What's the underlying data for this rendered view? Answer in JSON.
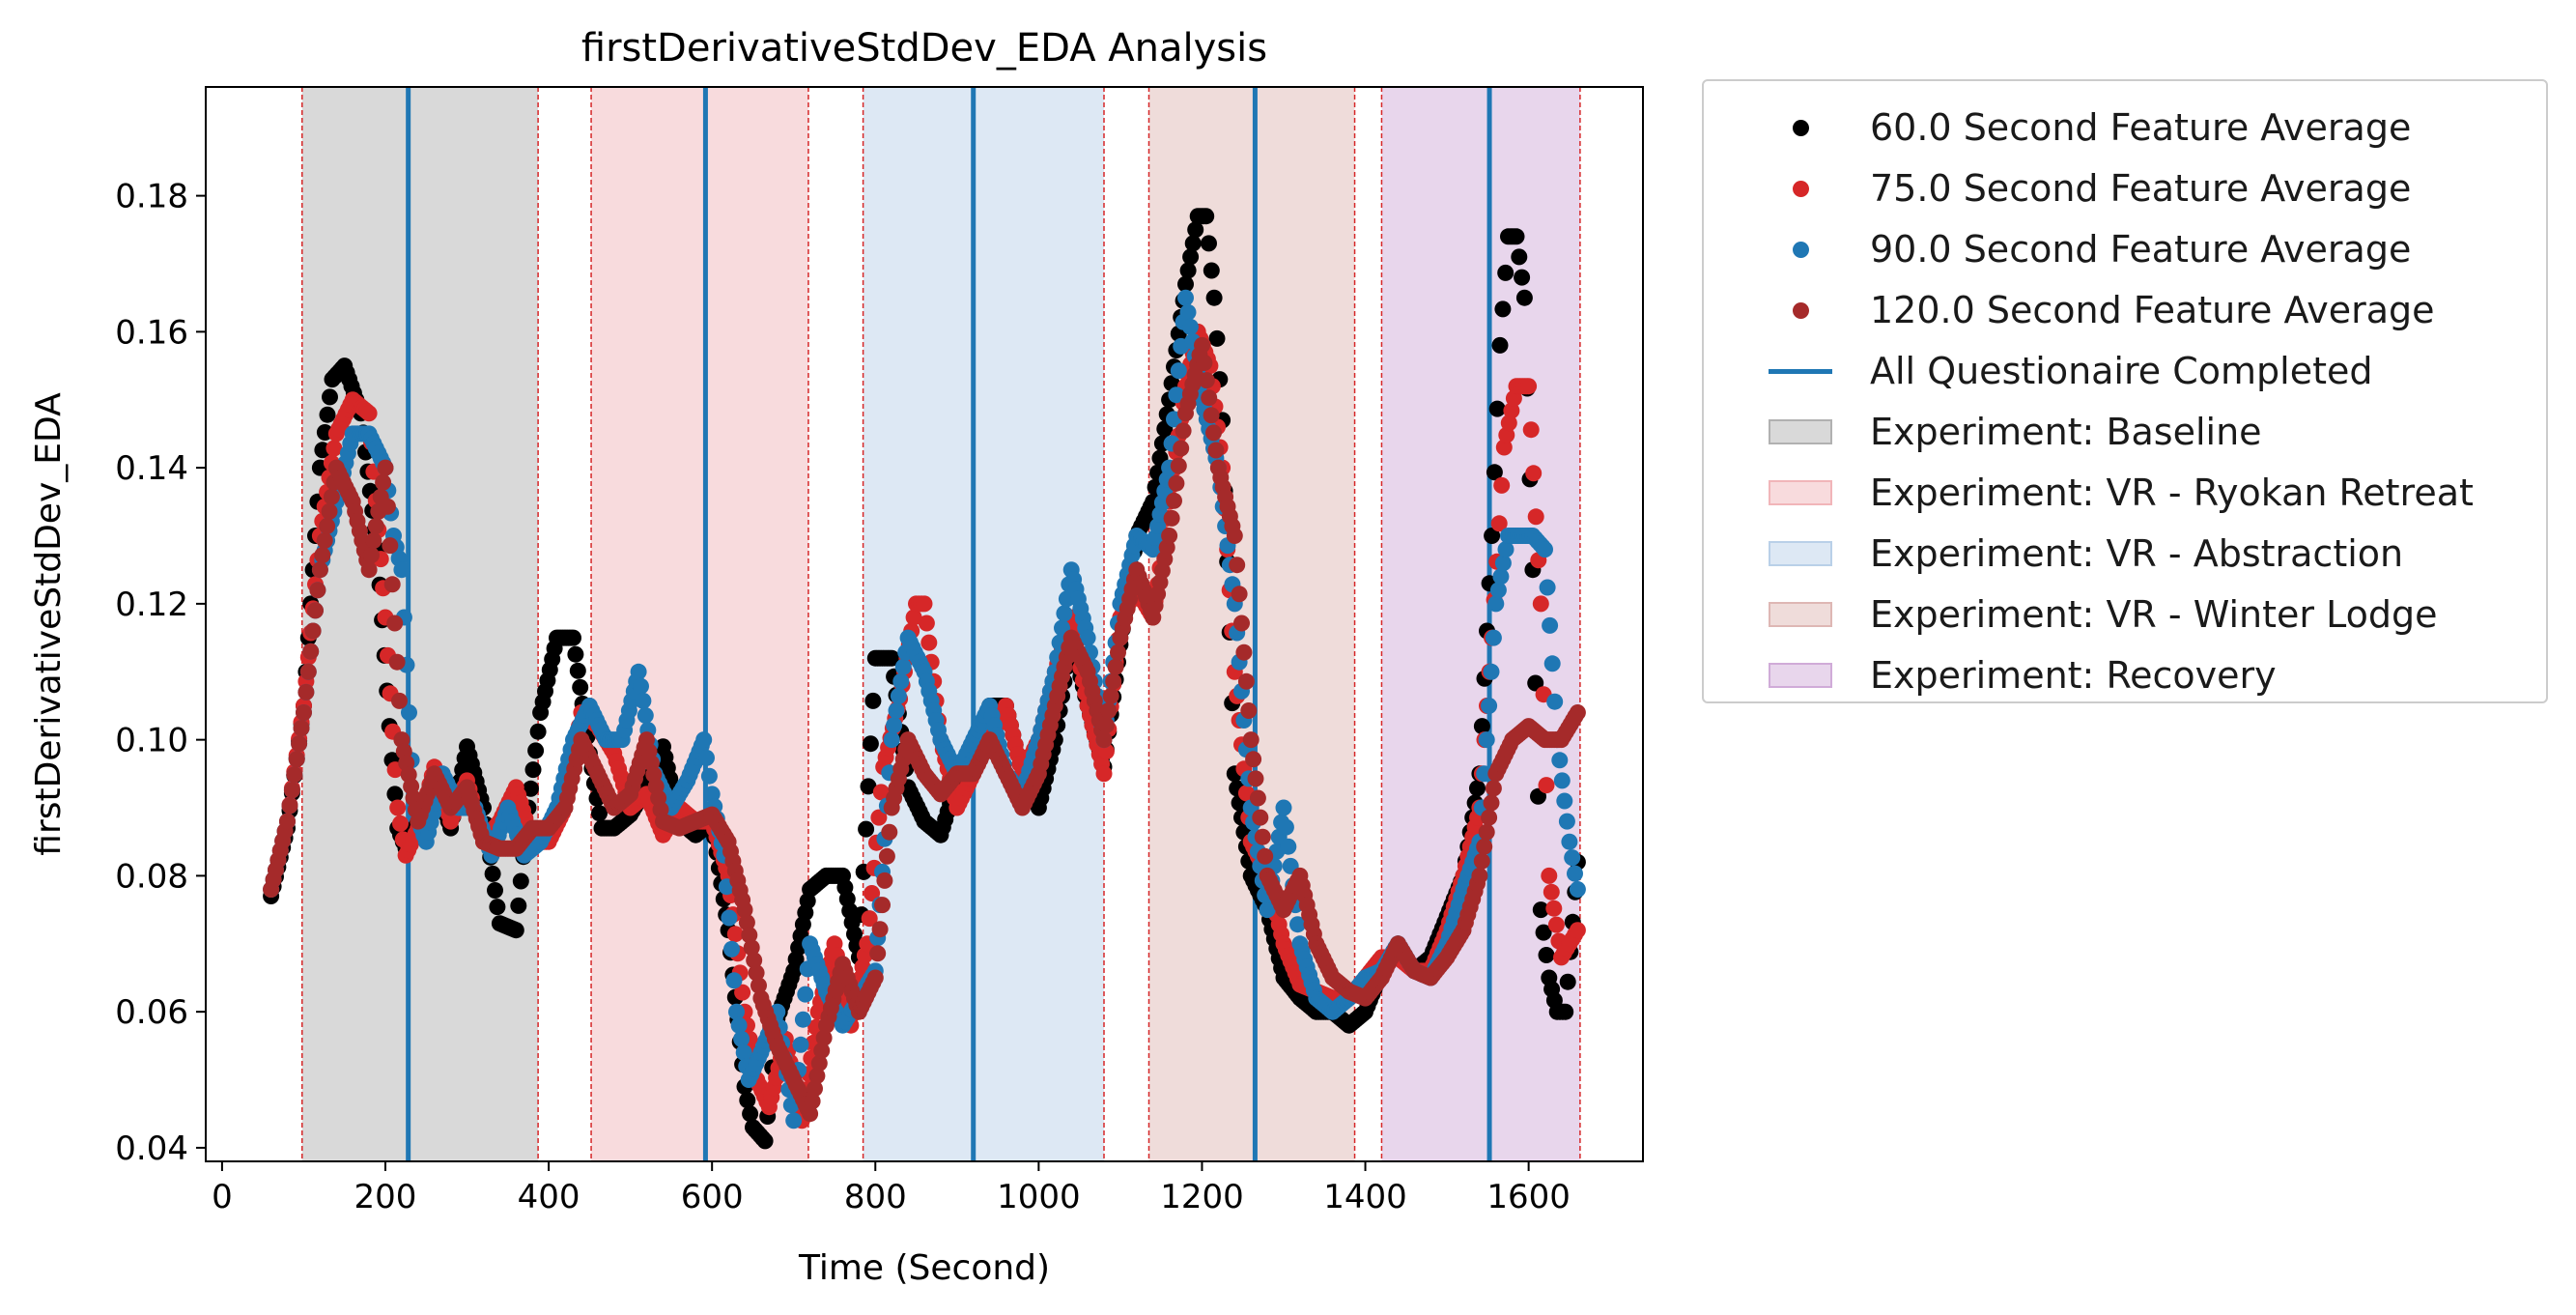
{
  "chart_data": {
    "type": "scatter",
    "title": "firstDerivativeStdDev_EDA Analysis",
    "xlabel": "Time (Second)",
    "ylabel": "firstDerivativeStdDev_EDA",
    "xlim": [
      -20,
      1740
    ],
    "ylim": [
      0.038,
      0.196
    ],
    "xticks": [
      0,
      200,
      400,
      600,
      800,
      1000,
      1200,
      1400,
      1600
    ],
    "yticks": [
      0.04,
      0.06,
      0.08,
      0.1,
      0.12,
      0.14,
      0.16,
      0.18
    ],
    "ytick_labels": [
      "0.04",
      "0.06",
      "0.08",
      "0.10",
      "0.12",
      "0.14",
      "0.16",
      "0.18"
    ],
    "grid": false,
    "legend_position": "outside-right",
    "experiments": [
      {
        "name": "Experiment: Baseline",
        "start": 98,
        "end": 387,
        "color": "#808080"
      },
      {
        "name": "Experiment: VR - Ryokan Retreat",
        "start": 452,
        "end": 718,
        "color": "#e8878f"
      },
      {
        "name": "Experiment: VR - Abstraction",
        "start": 785,
        "end": 1080,
        "color": "#8fb4d9"
      },
      {
        "name": "Experiment: VR - Winter Lodge",
        "start": 1135,
        "end": 1387,
        "color": "#c98a85"
      },
      {
        "name": "Experiment: Recovery",
        "start": 1420,
        "end": 1663,
        "color": "#b477c0"
      }
    ],
    "questionnaire": {
      "name": "All Questionaire Completed",
      "times": [
        228,
        592,
        920,
        1265,
        1552
      ],
      "color": "#1f77b4"
    },
    "series": [
      {
        "name": "60.0 Second Feature Average",
        "color": "#000000",
        "x": [
          60,
          80,
          100,
          120,
          135,
          150,
          170,
          190,
          205,
          215,
          225,
          240,
          260,
          280,
          300,
          320,
          340,
          360,
          375,
          390,
          410,
          430,
          450,
          465,
          480,
          500,
          520,
          540,
          560,
          580,
          600,
          620,
          640,
          650,
          665,
          680,
          700,
          720,
          740,
          760,
          780,
          800,
          820,
          840,
          860,
          880,
          900,
          920,
          940,
          960,
          980,
          1000,
          1020,
          1040,
          1060,
          1080,
          1100,
          1120,
          1140,
          1160,
          1180,
          1195,
          1205,
          1215,
          1225,
          1240,
          1260,
          1280,
          1300,
          1320,
          1340,
          1360,
          1380,
          1400,
          1420,
          1440,
          1460,
          1480,
          1500,
          1520,
          1540,
          1555,
          1565,
          1575,
          1585,
          1595,
          1605,
          1615,
          1625,
          1635,
          1645,
          1660
        ],
        "y": [
          0.077,
          0.087,
          0.105,
          0.14,
          0.153,
          0.155,
          0.148,
          0.128,
          0.102,
          0.087,
          0.084,
          0.088,
          0.094,
          0.087,
          0.099,
          0.09,
          0.073,
          0.072,
          0.09,
          0.104,
          0.115,
          0.115,
          0.098,
          0.087,
          0.087,
          0.089,
          0.093,
          0.099,
          0.088,
          0.086,
          0.088,
          0.072,
          0.049,
          0.043,
          0.041,
          0.059,
          0.066,
          0.078,
          0.08,
          0.08,
          0.068,
          0.112,
          0.112,
          0.093,
          0.088,
          0.086,
          0.094,
          0.098,
          0.105,
          0.105,
          0.095,
          0.09,
          0.1,
          0.115,
          0.105,
          0.096,
          0.114,
          0.13,
          0.135,
          0.15,
          0.167,
          0.177,
          0.177,
          0.165,
          0.147,
          0.095,
          0.08,
          0.075,
          0.065,
          0.062,
          0.06,
          0.06,
          0.058,
          0.06,
          0.066,
          0.07,
          0.066,
          0.068,
          0.074,
          0.08,
          0.095,
          0.13,
          0.158,
          0.174,
          0.174,
          0.165,
          0.125,
          0.075,
          0.065,
          0.06,
          0.06,
          0.082
        ]
      },
      {
        "name": "75.0 Second Feature Average",
        "color": "#d62728",
        "x": [
          60,
          80,
          100,
          120,
          140,
          160,
          180,
          200,
          215,
          225,
          240,
          260,
          280,
          300,
          320,
          340,
          360,
          380,
          400,
          420,
          440,
          460,
          480,
          500,
          520,
          540,
          560,
          580,
          600,
          620,
          640,
          655,
          670,
          690,
          710,
          730,
          750,
          770,
          790,
          810,
          830,
          850,
          860,
          880,
          900,
          920,
          940,
          960,
          980,
          1000,
          1020,
          1040,
          1060,
          1080,
          1100,
          1120,
          1140,
          1160,
          1180,
          1195,
          1210,
          1225,
          1240,
          1260,
          1280,
          1300,
          1320,
          1340,
          1360,
          1380,
          1400,
          1420,
          1440,
          1460,
          1480,
          1500,
          1520,
          1540,
          1555,
          1570,
          1585,
          1600,
          1615,
          1625,
          1640,
          1650,
          1660
        ],
        "y": [
          0.078,
          0.088,
          0.105,
          0.13,
          0.145,
          0.15,
          0.148,
          0.118,
          0.09,
          0.083,
          0.087,
          0.096,
          0.088,
          0.094,
          0.085,
          0.088,
          0.093,
          0.085,
          0.085,
          0.09,
          0.104,
          0.102,
          0.098,
          0.09,
          0.092,
          0.086,
          0.09,
          0.088,
          0.088,
          0.08,
          0.06,
          0.05,
          0.046,
          0.056,
          0.044,
          0.06,
          0.07,
          0.058,
          0.07,
          0.096,
          0.106,
          0.12,
          0.12,
          0.1,
          0.09,
          0.095,
          0.1,
          0.105,
          0.095,
          0.1,
          0.11,
          0.118,
          0.105,
          0.095,
          0.118,
          0.122,
          0.118,
          0.135,
          0.152,
          0.16,
          0.155,
          0.14,
          0.11,
          0.085,
          0.08,
          0.07,
          0.064,
          0.063,
          0.062,
          0.062,
          0.065,
          0.068,
          0.068,
          0.066,
          0.066,
          0.072,
          0.08,
          0.09,
          0.115,
          0.143,
          0.152,
          0.152,
          0.12,
          0.08,
          0.068,
          0.07,
          0.072
        ]
      },
      {
        "name": "90.0 Second Feature Average",
        "color": "#1f77b4",
        "x": [
          60,
          80,
          100,
          120,
          140,
          160,
          180,
          200,
          210,
          220,
          235,
          250,
          270,
          290,
          310,
          330,
          350,
          370,
          390,
          410,
          430,
          450,
          470,
          490,
          510,
          530,
          550,
          570,
          590,
          600,
          615,
          630,
          645,
          660,
          680,
          700,
          720,
          740,
          760,
          780,
          800,
          820,
          840,
          860,
          880,
          900,
          920,
          940,
          960,
          980,
          1000,
          1020,
          1040,
          1060,
          1080,
          1100,
          1120,
          1140,
          1160,
          1180,
          1200,
          1220,
          1240,
          1260,
          1280,
          1300,
          1320,
          1340,
          1360,
          1380,
          1400,
          1420,
          1440,
          1460,
          1480,
          1500,
          1520,
          1540,
          1560,
          1575,
          1590,
          1605,
          1620,
          1635,
          1650,
          1660
        ],
        "y": [
          0.078,
          0.088,
          0.104,
          0.125,
          0.135,
          0.145,
          0.145,
          0.14,
          0.13,
          0.125,
          0.09,
          0.085,
          0.095,
          0.09,
          0.09,
          0.083,
          0.09,
          0.083,
          0.085,
          0.09,
          0.1,
          0.105,
          0.1,
          0.1,
          0.11,
          0.095,
          0.09,
          0.094,
          0.1,
          0.092,
          0.083,
          0.06,
          0.05,
          0.054,
          0.06,
          0.044,
          0.07,
          0.063,
          0.058,
          0.062,
          0.066,
          0.1,
          0.115,
          0.11,
          0.1,
          0.095,
          0.1,
          0.105,
          0.095,
          0.092,
          0.1,
          0.11,
          0.125,
          0.115,
          0.1,
          0.12,
          0.13,
          0.128,
          0.14,
          0.165,
          0.15,
          0.14,
          0.12,
          0.09,
          0.075,
          0.09,
          0.07,
          0.062,
          0.06,
          0.062,
          0.065,
          0.066,
          0.07,
          0.066,
          0.065,
          0.07,
          0.078,
          0.085,
          0.12,
          0.13,
          0.13,
          0.13,
          0.128,
          0.1,
          0.085,
          0.078
        ]
      },
      {
        "name": "120.0 Second Feature Average",
        "color": "#a52a2a",
        "x": [
          60,
          80,
          100,
          120,
          140,
          160,
          180,
          200,
          220,
          240,
          260,
          280,
          300,
          320,
          340,
          360,
          380,
          400,
          420,
          440,
          460,
          480,
          500,
          520,
          540,
          560,
          580,
          600,
          620,
          640,
          660,
          680,
          700,
          720,
          740,
          760,
          780,
          800,
          820,
          840,
          860,
          880,
          900,
          920,
          940,
          960,
          980,
          1000,
          1020,
          1040,
          1060,
          1080,
          1100,
          1120,
          1140,
          1160,
          1180,
          1200,
          1220,
          1240,
          1260,
          1280,
          1300,
          1320,
          1340,
          1360,
          1380,
          1400,
          1420,
          1440,
          1460,
          1480,
          1500,
          1520,
          1540,
          1560,
          1580,
          1600,
          1620,
          1640,
          1660
        ],
        "y": [
          0.078,
          0.088,
          0.104,
          0.125,
          0.14,
          0.135,
          0.125,
          0.14,
          0.1,
          0.088,
          0.095,
          0.09,
          0.093,
          0.085,
          0.084,
          0.084,
          0.087,
          0.087,
          0.09,
          0.1,
          0.095,
          0.09,
          0.092,
          0.1,
          0.088,
          0.087,
          0.088,
          0.089,
          0.085,
          0.075,
          0.062,
          0.055,
          0.05,
          0.045,
          0.058,
          0.067,
          0.06,
          0.065,
          0.09,
          0.1,
          0.095,
          0.092,
          0.095,
          0.095,
          0.1,
          0.095,
          0.09,
          0.095,
          0.105,
          0.115,
          0.11,
          0.1,
          0.115,
          0.125,
          0.118,
          0.13,
          0.148,
          0.158,
          0.14,
          0.13,
          0.1,
          0.08,
          0.075,
          0.08,
          0.07,
          0.065,
          0.063,
          0.062,
          0.065,
          0.07,
          0.066,
          0.065,
          0.068,
          0.072,
          0.08,
          0.095,
          0.1,
          0.102,
          0.1,
          0.1,
          0.104
        ]
      }
    ]
  },
  "legend": {
    "items": [
      {
        "label": "60.0 Second Feature Average"
      },
      {
        "label": "75.0 Second Feature Average"
      },
      {
        "label": "90.0 Second Feature Average"
      },
      {
        "label": "120.0 Second Feature Average"
      },
      {
        "label": "All Questionaire Completed"
      },
      {
        "label": "Experiment: Baseline"
      },
      {
        "label": "Experiment: VR - Ryokan Retreat"
      },
      {
        "label": "Experiment: VR - Abstraction"
      },
      {
        "label": "Experiment: VR - Winter Lodge"
      },
      {
        "label": "Experiment: Recovery"
      }
    ]
  }
}
